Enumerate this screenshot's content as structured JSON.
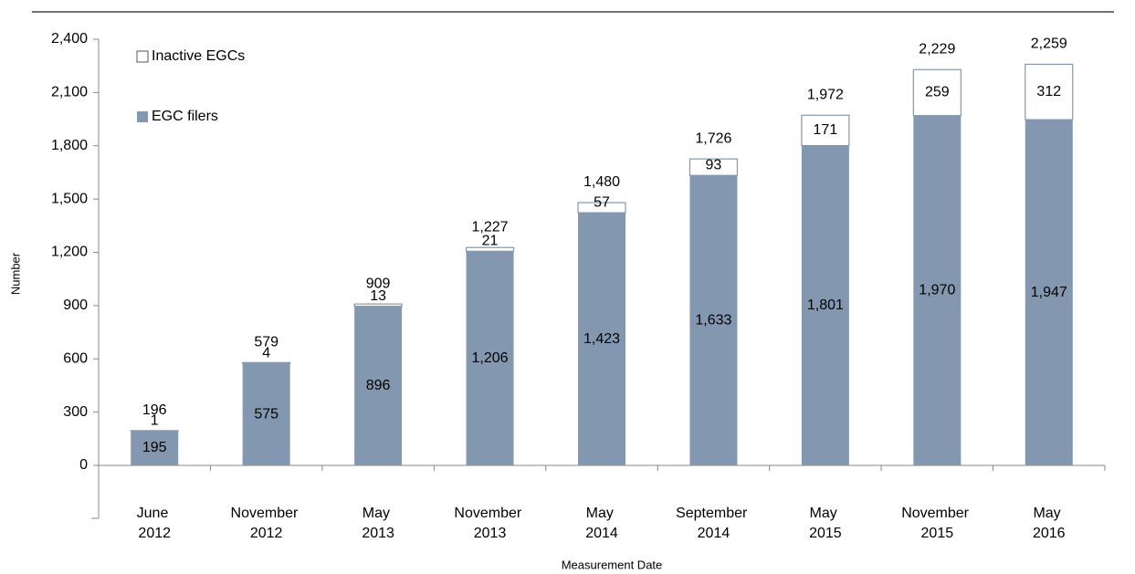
{
  "chart_data": {
    "type": "stacked_bar",
    "y_label": "Number",
    "x_label": "Measurement Date",
    "categories": [
      "June 2012",
      "November 2012",
      "May 2013",
      "November 2013",
      "May 2014",
      "September 2014",
      "May 2015",
      "November 2015",
      "May 2016"
    ],
    "series": [
      {
        "name": "EGC filers",
        "color": "#8497b0",
        "values": [
          195,
          575,
          896,
          1206,
          1423,
          1633,
          1801,
          1970,
          1947
        ],
        "value_labels": [
          "195",
          "575",
          "896",
          "1,206",
          "1,423",
          "1,633",
          "1,801",
          "1,970",
          "1,947"
        ]
      },
      {
        "name": "Inactive EGCs",
        "color": "#ffffff",
        "values": [
          1,
          4,
          13,
          21,
          57,
          93,
          171,
          259,
          312
        ]
      }
    ],
    "totals": {
      "values": [
        196,
        579,
        909,
        1227,
        1480,
        1726,
        1972,
        2229,
        2259
      ],
      "value_labels": [
        "196",
        "579",
        "909",
        "1,227",
        "1,480",
        "1,726",
        "1,972",
        "2,229",
        "2,259"
      ]
    },
    "ylim": [
      0,
      2400
    ],
    "yticks": [
      0,
      300,
      600,
      900,
      {
        "value": 1200,
        "label": "1,200"
      },
      {
        "value": 1500,
        "label": "1,500"
      },
      {
        "value": 1800,
        "label": "1,800"
      },
      {
        "value": 2100,
        "label": "2,100"
      },
      {
        "value": 2400,
        "label": "2,400"
      }
    ]
  }
}
